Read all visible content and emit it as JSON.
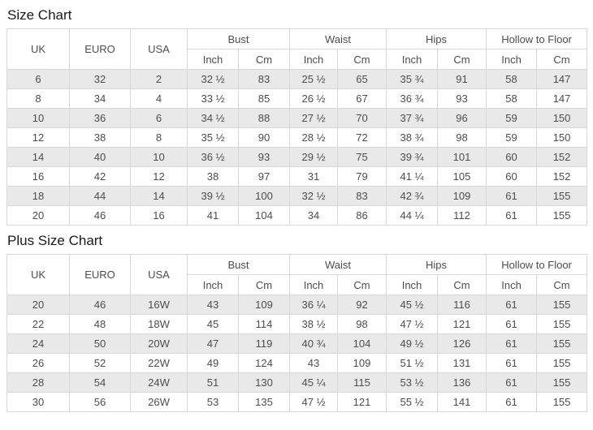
{
  "colors": {
    "stripe": "#e9e9e9",
    "border": "#d8d8d8",
    "text": "#4d4d4d",
    "title": "#1a1a1a",
    "background": "#ffffff"
  },
  "headers": {
    "uk": "UK",
    "euro": "EURO",
    "usa": "USA",
    "bust": "Bust",
    "waist": "Waist",
    "hips": "Hips",
    "hollow_to_floor": "Hollow to Floor",
    "inch": "Inch",
    "cm": "Cm"
  },
  "size_chart": {
    "title": "Size Chart",
    "rows": [
      [
        "6",
        "32",
        "2",
        "32 ½",
        "83",
        "25 ½",
        "65",
        "35 ¾",
        "91",
        "58",
        "147"
      ],
      [
        "8",
        "34",
        "4",
        "33 ½",
        "85",
        "26 ½",
        "67",
        "36 ¾",
        "93",
        "58",
        "147"
      ],
      [
        "10",
        "36",
        "6",
        "34 ½",
        "88",
        "27 ½",
        "70",
        "37 ¾",
        "96",
        "59",
        "150"
      ],
      [
        "12",
        "38",
        "8",
        "35 ½",
        "90",
        "28 ½",
        "72",
        "38 ¾",
        "98",
        "59",
        "150"
      ],
      [
        "14",
        "40",
        "10",
        "36 ½",
        "93",
        "29 ½",
        "75",
        "39 ¾",
        "101",
        "60",
        "152"
      ],
      [
        "16",
        "42",
        "12",
        "38",
        "97",
        "31",
        "79",
        "41 ¼",
        "105",
        "60",
        "152"
      ],
      [
        "18",
        "44",
        "14",
        "39 ½",
        "100",
        "32 ½",
        "83",
        "42 ¾",
        "109",
        "61",
        "155"
      ],
      [
        "20",
        "46",
        "16",
        "41",
        "104",
        "34",
        "86",
        "44 ¼",
        "112",
        "61",
        "155"
      ]
    ]
  },
  "plus_size_chart": {
    "title": "Plus Size Chart",
    "rows": [
      [
        "20",
        "46",
        "16W",
        "43",
        "109",
        "36 ¼",
        "92",
        "45 ½",
        "116",
        "61",
        "155"
      ],
      [
        "22",
        "48",
        "18W",
        "45",
        "114",
        "38 ½",
        "98",
        "47 ½",
        "121",
        "61",
        "155"
      ],
      [
        "24",
        "50",
        "20W",
        "47",
        "119",
        "40 ¾",
        "104",
        "49 ½",
        "126",
        "61",
        "155"
      ],
      [
        "26",
        "52",
        "22W",
        "49",
        "124",
        "43",
        "109",
        "51 ½",
        "131",
        "61",
        "155"
      ],
      [
        "28",
        "54",
        "24W",
        "51",
        "130",
        "45 ¼",
        "115",
        "53 ½",
        "136",
        "61",
        "155"
      ],
      [
        "30",
        "56",
        "26W",
        "53",
        "135",
        "47 ½",
        "121",
        "55 ½",
        "141",
        "61",
        "155"
      ]
    ]
  }
}
